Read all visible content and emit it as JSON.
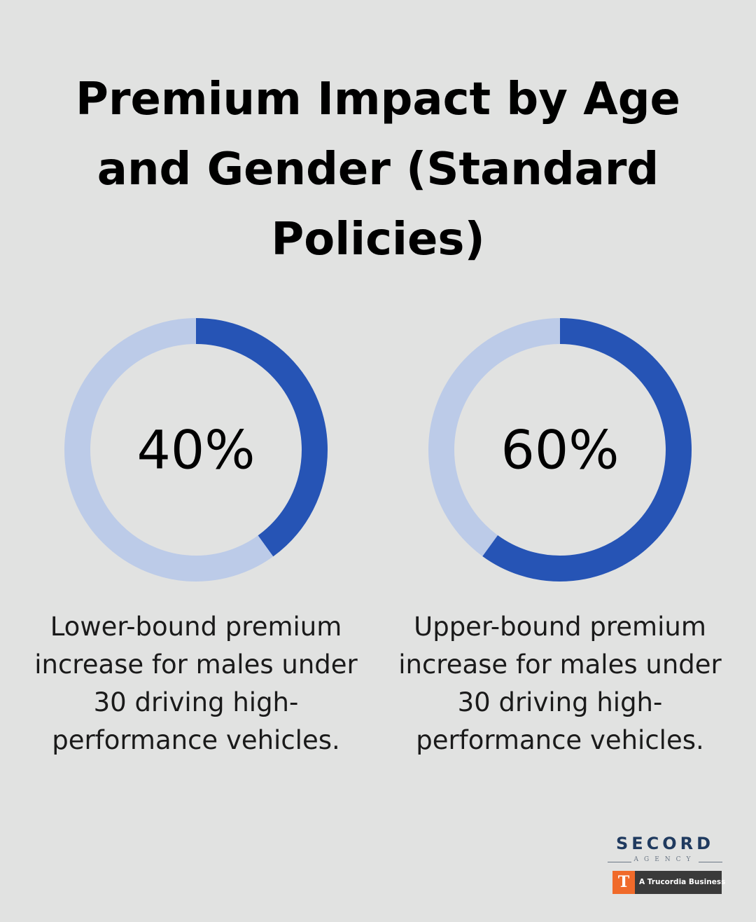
{
  "title": "Premium Impact by Age and Gender (Standard Policies)",
  "colors": {
    "background": "#e1e2e1",
    "ring_fill": "#2654b5",
    "ring_track": "#bccbe8"
  },
  "chart_data": [
    {
      "type": "pie",
      "variant": "donut",
      "value": 40,
      "value_label": "40%",
      "caption": "Lower-bound premium increase for males under 30 driving high-performance vehicles."
    },
    {
      "type": "pie",
      "variant": "donut",
      "value": 60,
      "value_label": "60%",
      "caption": "Upper-bound premium increase for males under 30 driving high-performance vehicles."
    }
  ],
  "logo": {
    "name": "SECORD",
    "subtitle": "AGENCY",
    "badge_mark": "T",
    "badge_text": "A Trucordia Business"
  }
}
